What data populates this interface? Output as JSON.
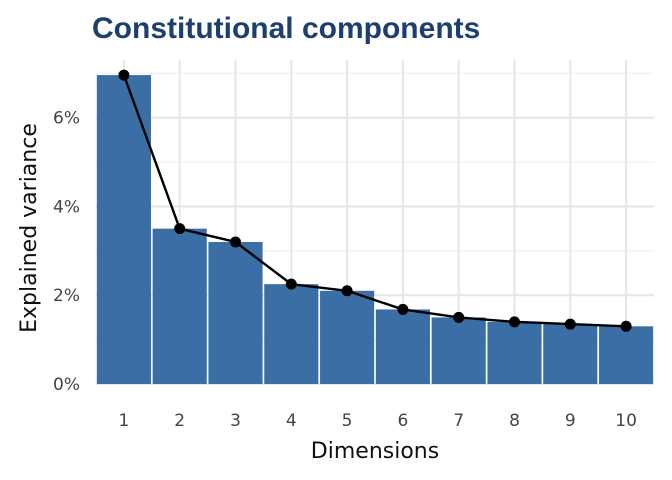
{
  "colors": {
    "title": "#1d3f6e",
    "bar": "#3a6ea5",
    "line": "#000000",
    "grid_major": "#e6e6e6",
    "grid_minor": "#f2f2f2"
  },
  "chart_data": {
    "type": "bar",
    "title": "Constitutional components",
    "xlabel": "Dimensions",
    "ylabel": "Explained variance",
    "categories": [
      "1",
      "2",
      "3",
      "4",
      "5",
      "6",
      "7",
      "8",
      "9",
      "10"
    ],
    "values": [
      6.96,
      3.5,
      3.2,
      2.25,
      2.1,
      1.68,
      1.5,
      1.4,
      1.35,
      1.3
    ],
    "line_overlay": true,
    "ylim": [
      0,
      7.3
    ],
    "y_ticks": [
      0,
      2,
      4,
      6
    ],
    "y_tick_labels": [
      "0%",
      "2%",
      "4%",
      "6%"
    ],
    "grid": true,
    "legend": "none"
  }
}
